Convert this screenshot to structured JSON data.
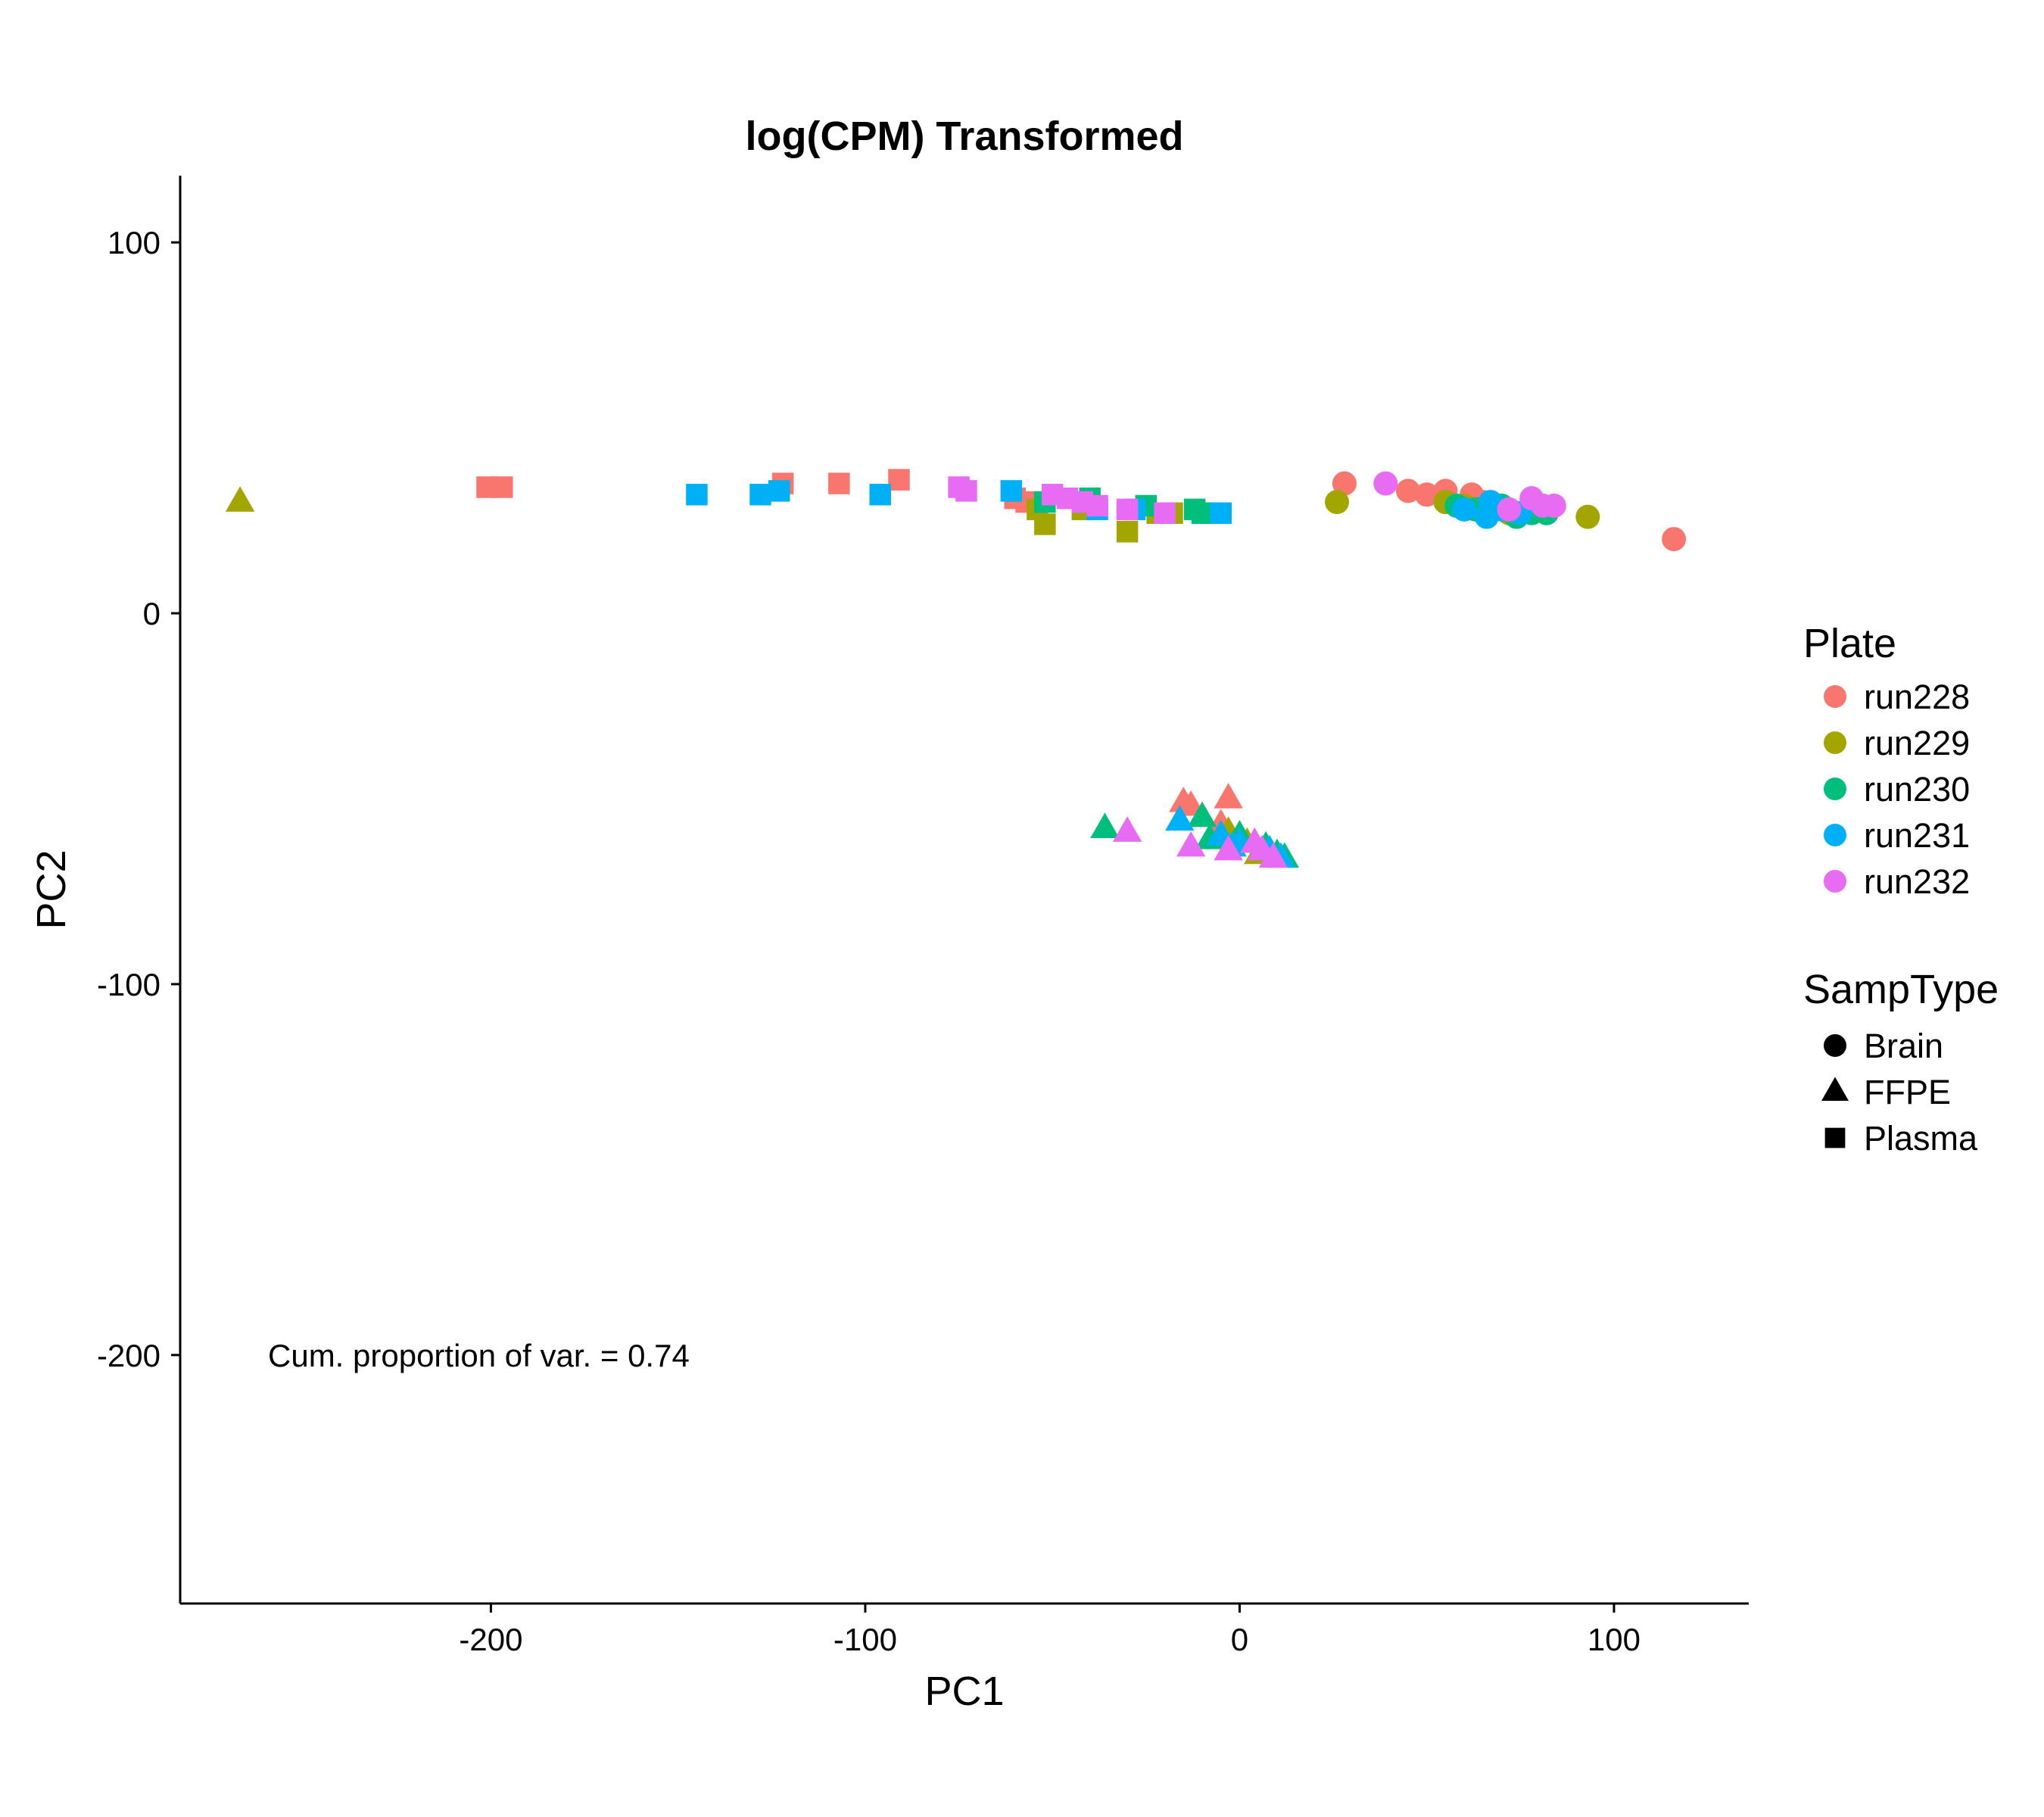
{
  "chart_data": {
    "type": "scatter",
    "title": "log(CPM) Transformed",
    "xlabel": "PC1",
    "ylabel": "PC2",
    "xlim": [
      -283,
      136
    ],
    "ylim": [
      -267,
      118
    ],
    "x_ticks": [
      -200,
      -100,
      0,
      100
    ],
    "y_ticks": [
      100,
      0,
      -100,
      -200
    ],
    "x_tick_labels": [
      "-200",
      "-100",
      "0",
      "100"
    ],
    "y_tick_labels": [
      "100",
      "0",
      "-100",
      "-200"
    ],
    "grid": false,
    "annotation": {
      "text": "Cum. proportion of var. = 0.74",
      "x": -262,
      "y": -201
    },
    "legend": {
      "placement": "right",
      "color": {
        "title": "Plate",
        "entries": [
          {
            "label": "run228",
            "color": "#F8766D"
          },
          {
            "label": "run229",
            "color": "#A3A500"
          },
          {
            "label": "run230",
            "color": "#00BF7D"
          },
          {
            "label": "run231",
            "color": "#00B0F6"
          },
          {
            "label": "run232",
            "color": "#E76BF3"
          }
        ]
      },
      "shape": {
        "title": "SampType",
        "entries": [
          {
            "label": "Brain",
            "shape": "circle"
          },
          {
            "label": "FFPE",
            "shape": "triangle"
          },
          {
            "label": "Plasma",
            "shape": "square"
          }
        ]
      }
    },
    "series": [
      {
        "plate": "run228",
        "samptype": "Brain",
        "points": [
          [
            28,
            35
          ],
          [
            45,
            33
          ],
          [
            50,
            32
          ],
          [
            55,
            33
          ],
          [
            62,
            32
          ],
          [
            65,
            30
          ],
          [
            116,
            20
          ]
        ]
      },
      {
        "plate": "run229",
        "samptype": "Brain",
        "points": [
          [
            26,
            30
          ],
          [
            55,
            30
          ],
          [
            60,
            29
          ],
          [
            68,
            28
          ],
          [
            72,
            27
          ],
          [
            93,
            26
          ]
        ]
      },
      {
        "plate": "run230",
        "samptype": "Brain",
        "points": [
          [
            58,
            29
          ],
          [
            63,
            28
          ],
          [
            70,
            29
          ],
          [
            74,
            26
          ],
          [
            78,
            27
          ],
          [
            82,
            27
          ]
        ]
      },
      {
        "plate": "run231",
        "samptype": "Brain",
        "points": [
          [
            60,
            28
          ],
          [
            66,
            26
          ],
          [
            67,
            30
          ],
          [
            70,
            28
          ],
          [
            75,
            27
          ]
        ]
      },
      {
        "plate": "run232",
        "samptype": "Brain",
        "points": [
          [
            39,
            35
          ],
          [
            72,
            28
          ],
          [
            78,
            31
          ],
          [
            81,
            29
          ],
          [
            84,
            29
          ]
        ]
      },
      {
        "plate": "run228",
        "samptype": "FFPE",
        "points": [
          [
            -15,
            -51
          ],
          [
            -13,
            -52
          ],
          [
            -3,
            -50
          ],
          [
            -10,
            -55
          ],
          [
            -5,
            -57
          ]
        ]
      },
      {
        "plate": "run229",
        "samptype": "FFPE",
        "points": [
          [
            -267,
            30
          ],
          [
            -3,
            -59
          ],
          [
            5,
            -65
          ],
          [
            2,
            -62
          ]
        ]
      },
      {
        "plate": "run230",
        "samptype": "FFPE",
        "points": [
          [
            -36,
            -58
          ],
          [
            -10,
            -55
          ],
          [
            -8,
            -61
          ],
          [
            0,
            -60
          ],
          [
            7,
            -63
          ],
          [
            10,
            -65
          ],
          [
            12,
            -66
          ]
        ]
      },
      {
        "plate": "run231",
        "samptype": "FFPE",
        "points": [
          [
            -16,
            -56
          ],
          [
            -5,
            -60
          ],
          [
            0,
            -62
          ],
          [
            -2,
            -63
          ],
          [
            8,
            -64
          ],
          [
            11,
            -66
          ]
        ]
      },
      {
        "plate": "run232",
        "samptype": "FFPE",
        "points": [
          [
            -30,
            -59
          ],
          [
            -13,
            -63
          ],
          [
            -3,
            -64
          ],
          [
            4,
            -62
          ],
          [
            6,
            -64
          ],
          [
            9,
            -66
          ]
        ]
      },
      {
        "plate": "run228",
        "samptype": "Plasma",
        "points": [
          [
            -201,
            34
          ],
          [
            -197,
            34
          ],
          [
            -122,
            35
          ],
          [
            -107,
            35
          ],
          [
            -91,
            36
          ],
          [
            -60,
            31
          ],
          [
            -57,
            30
          ]
        ]
      },
      {
        "plate": "run229",
        "samptype": "Plasma",
        "points": [
          [
            -54,
            28
          ],
          [
            -52,
            24
          ],
          [
            -42,
            28
          ],
          [
            -30,
            22
          ],
          [
            -22,
            27
          ],
          [
            -18,
            27
          ]
        ]
      },
      {
        "plate": "run230",
        "samptype": "Plasma",
        "points": [
          [
            -52,
            30
          ],
          [
            -40,
            31
          ],
          [
            -25,
            29
          ],
          [
            -12,
            28
          ],
          [
            -10,
            27
          ]
        ]
      },
      {
        "plate": "run231",
        "samptype": "Plasma",
        "points": [
          [
            -145,
            32
          ],
          [
            -128,
            32
          ],
          [
            -123,
            33
          ],
          [
            -96,
            32
          ],
          [
            -61,
            33
          ],
          [
            -38,
            28
          ],
          [
            -28,
            28
          ],
          [
            -5,
            27
          ]
        ]
      },
      {
        "plate": "run232",
        "samptype": "Plasma",
        "points": [
          [
            -75,
            34
          ],
          [
            -73,
            33
          ],
          [
            -50,
            32
          ],
          [
            -46,
            31
          ],
          [
            -42,
            30
          ],
          [
            -38,
            29
          ],
          [
            -30,
            28
          ],
          [
            -20,
            27
          ]
        ]
      }
    ]
  }
}
